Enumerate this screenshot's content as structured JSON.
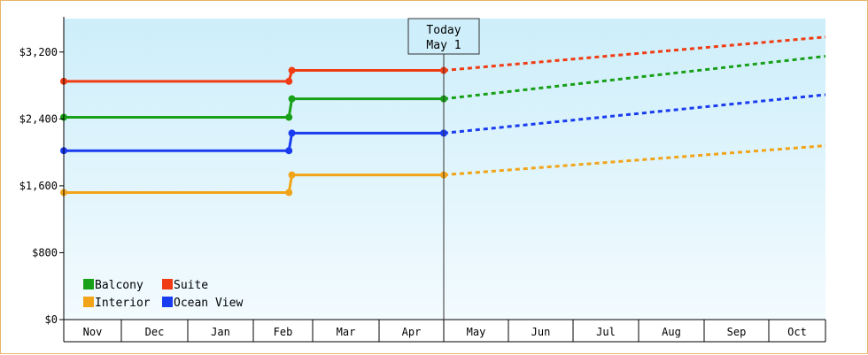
{
  "chart_data": {
    "type": "line",
    "title": "",
    "xlabel": "",
    "ylabel": "",
    "categories": [
      "Nov",
      "Dec",
      "Jan",
      "Feb",
      "Mar",
      "Apr",
      "May",
      "Jun",
      "Jul",
      "Aug",
      "Sep",
      "Oct"
    ],
    "ylim": [
      0,
      3600
    ],
    "y_ticks": [
      {
        "value": 0,
        "label": "$0"
      },
      {
        "value": 800,
        "label": "$800"
      },
      {
        "value": 1600,
        "label": "$1,600"
      },
      {
        "value": 2400,
        "label": "$2,400"
      },
      {
        "value": 3200,
        "label": "$3,200"
      }
    ],
    "today_marker": {
      "line1": "Today",
      "line2": "May 1",
      "x": 6.0
    },
    "legend_placement": "bottom-left",
    "grid": false,
    "series": [
      {
        "name": "Suite",
        "color": "#f03c14",
        "actual": [
          [
            0.0,
            2850
          ],
          [
            3.6,
            2850
          ],
          [
            3.65,
            2980
          ],
          [
            6.0,
            2980
          ]
        ],
        "actual_markers": [
          0.0,
          3.6,
          3.65,
          6.0
        ],
        "forecast": [
          [
            6.0,
            2980
          ],
          [
            12.0,
            3380
          ]
        ]
      },
      {
        "name": "Balcony",
        "color": "#18a018",
        "actual": [
          [
            0.0,
            2420
          ],
          [
            3.6,
            2420
          ],
          [
            3.65,
            2640
          ],
          [
            6.0,
            2640
          ]
        ],
        "actual_markers": [
          0.0,
          3.6,
          3.65,
          6.0
        ],
        "forecast": [
          [
            6.0,
            2640
          ],
          [
            12.0,
            3150
          ]
        ]
      },
      {
        "name": "Ocean View",
        "color": "#1a3cf0",
        "actual": [
          [
            0.0,
            2020
          ],
          [
            3.6,
            2020
          ],
          [
            3.65,
            2230
          ],
          [
            6.0,
            2230
          ]
        ],
        "actual_markers": [
          0.0,
          3.6,
          3.65,
          6.0
        ],
        "forecast": [
          [
            6.0,
            2230
          ],
          [
            12.0,
            2690
          ]
        ]
      },
      {
        "name": "Interior",
        "color": "#f2a418",
        "actual": [
          [
            0.0,
            1520
          ],
          [
            3.6,
            1520
          ],
          [
            3.65,
            1730
          ],
          [
            6.0,
            1730
          ]
        ],
        "actual_markers": [
          0.0,
          3.6,
          3.65,
          6.0
        ],
        "forecast": [
          [
            6.0,
            1730
          ],
          [
            12.0,
            2080
          ]
        ]
      }
    ],
    "legend": [
      {
        "name": "Balcony",
        "color": "#18a018"
      },
      {
        "name": "Suite",
        "color": "#f03c14"
      },
      {
        "name": "Interior",
        "color": "#f2a418"
      },
      {
        "name": "Ocean View",
        "color": "#1a3cf0"
      }
    ]
  }
}
